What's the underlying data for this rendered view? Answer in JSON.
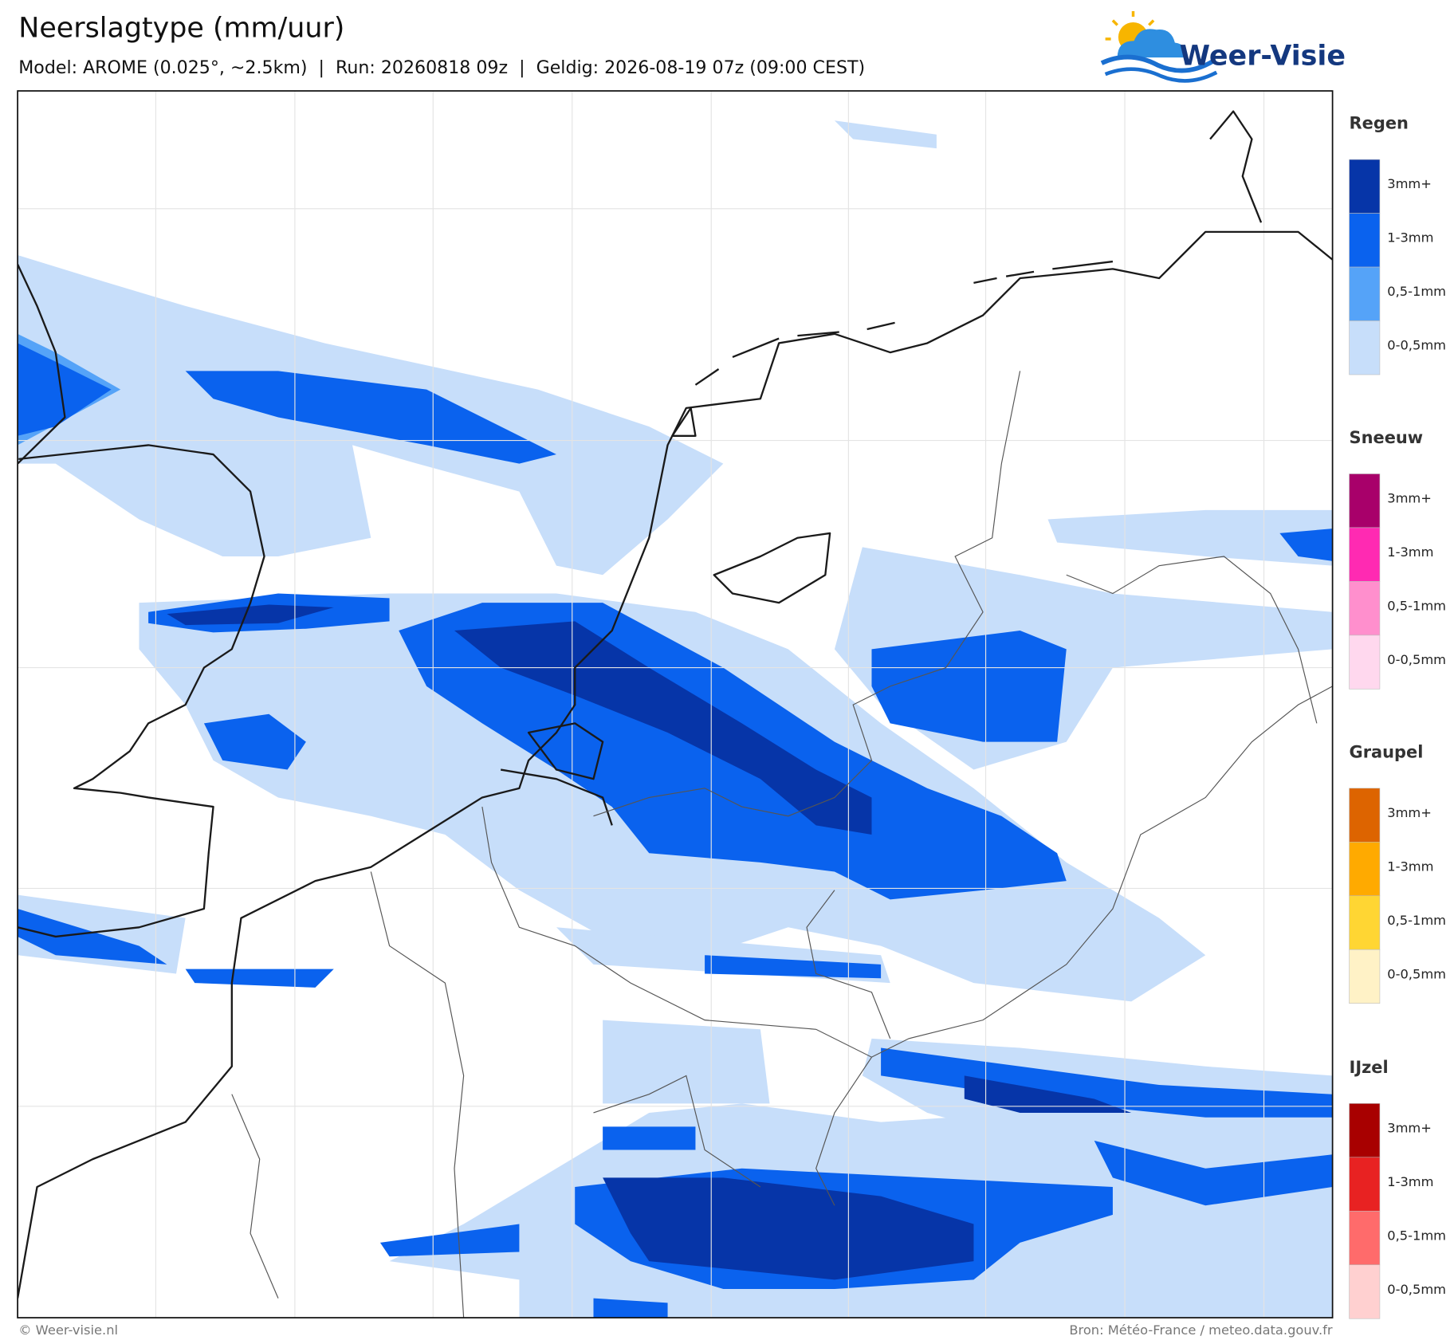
{
  "header": {
    "title": "Neerslagtype (mm/uur)",
    "subtitle": "Model: AROME (0.025°, ~2.5km)  |  Run: 20260818 09z  |  Geldig: 2026-08-19 07z (09:00 CEST)",
    "logo": "Weer-Visie"
  },
  "legend": [
    {
      "title": "Regen",
      "items": [
        {
          "label": "3mm+",
          "color": "#0635a8"
        },
        {
          "label": "1-3mm",
          "color": "#0a62ee"
        },
        {
          "label": "0,5-1mm",
          "color": "#55a3f8"
        },
        {
          "label": "0-0,5mm",
          "color": "#c7defa"
        }
      ]
    },
    {
      "title": "Sneeuw",
      "items": [
        {
          "label": "3mm+",
          "color": "#a8006a"
        },
        {
          "label": "1-3mm",
          "color": "#ff2ab2"
        },
        {
          "label": "0,5-1mm",
          "color": "#ff8fcd"
        },
        {
          "label": "0-0,5mm",
          "color": "#ffd8ee"
        }
      ]
    },
    {
      "title": "Graupel",
      "items": [
        {
          "label": "3mm+",
          "color": "#dd6400"
        },
        {
          "label": "1-3mm",
          "color": "#ffaa00"
        },
        {
          "label": "0,5-1mm",
          "color": "#ffd633"
        },
        {
          "label": "0-0,5mm",
          "color": "#fff2c6"
        }
      ]
    },
    {
      "title": "IJzel",
      "items": [
        {
          "label": "3mm+",
          "color": "#a80000"
        },
        {
          "label": "1-3mm",
          "color": "#e82222"
        },
        {
          "label": "0,5-1mm",
          "color": "#ff6b6b"
        },
        {
          "label": "0-0,5mm",
          "color": "#ffd0d0"
        }
      ]
    }
  ],
  "footer": {
    "left": "© Weer-visie.nl",
    "right": "Bron: Météo-France / meteo.data.gouv.fr"
  }
}
